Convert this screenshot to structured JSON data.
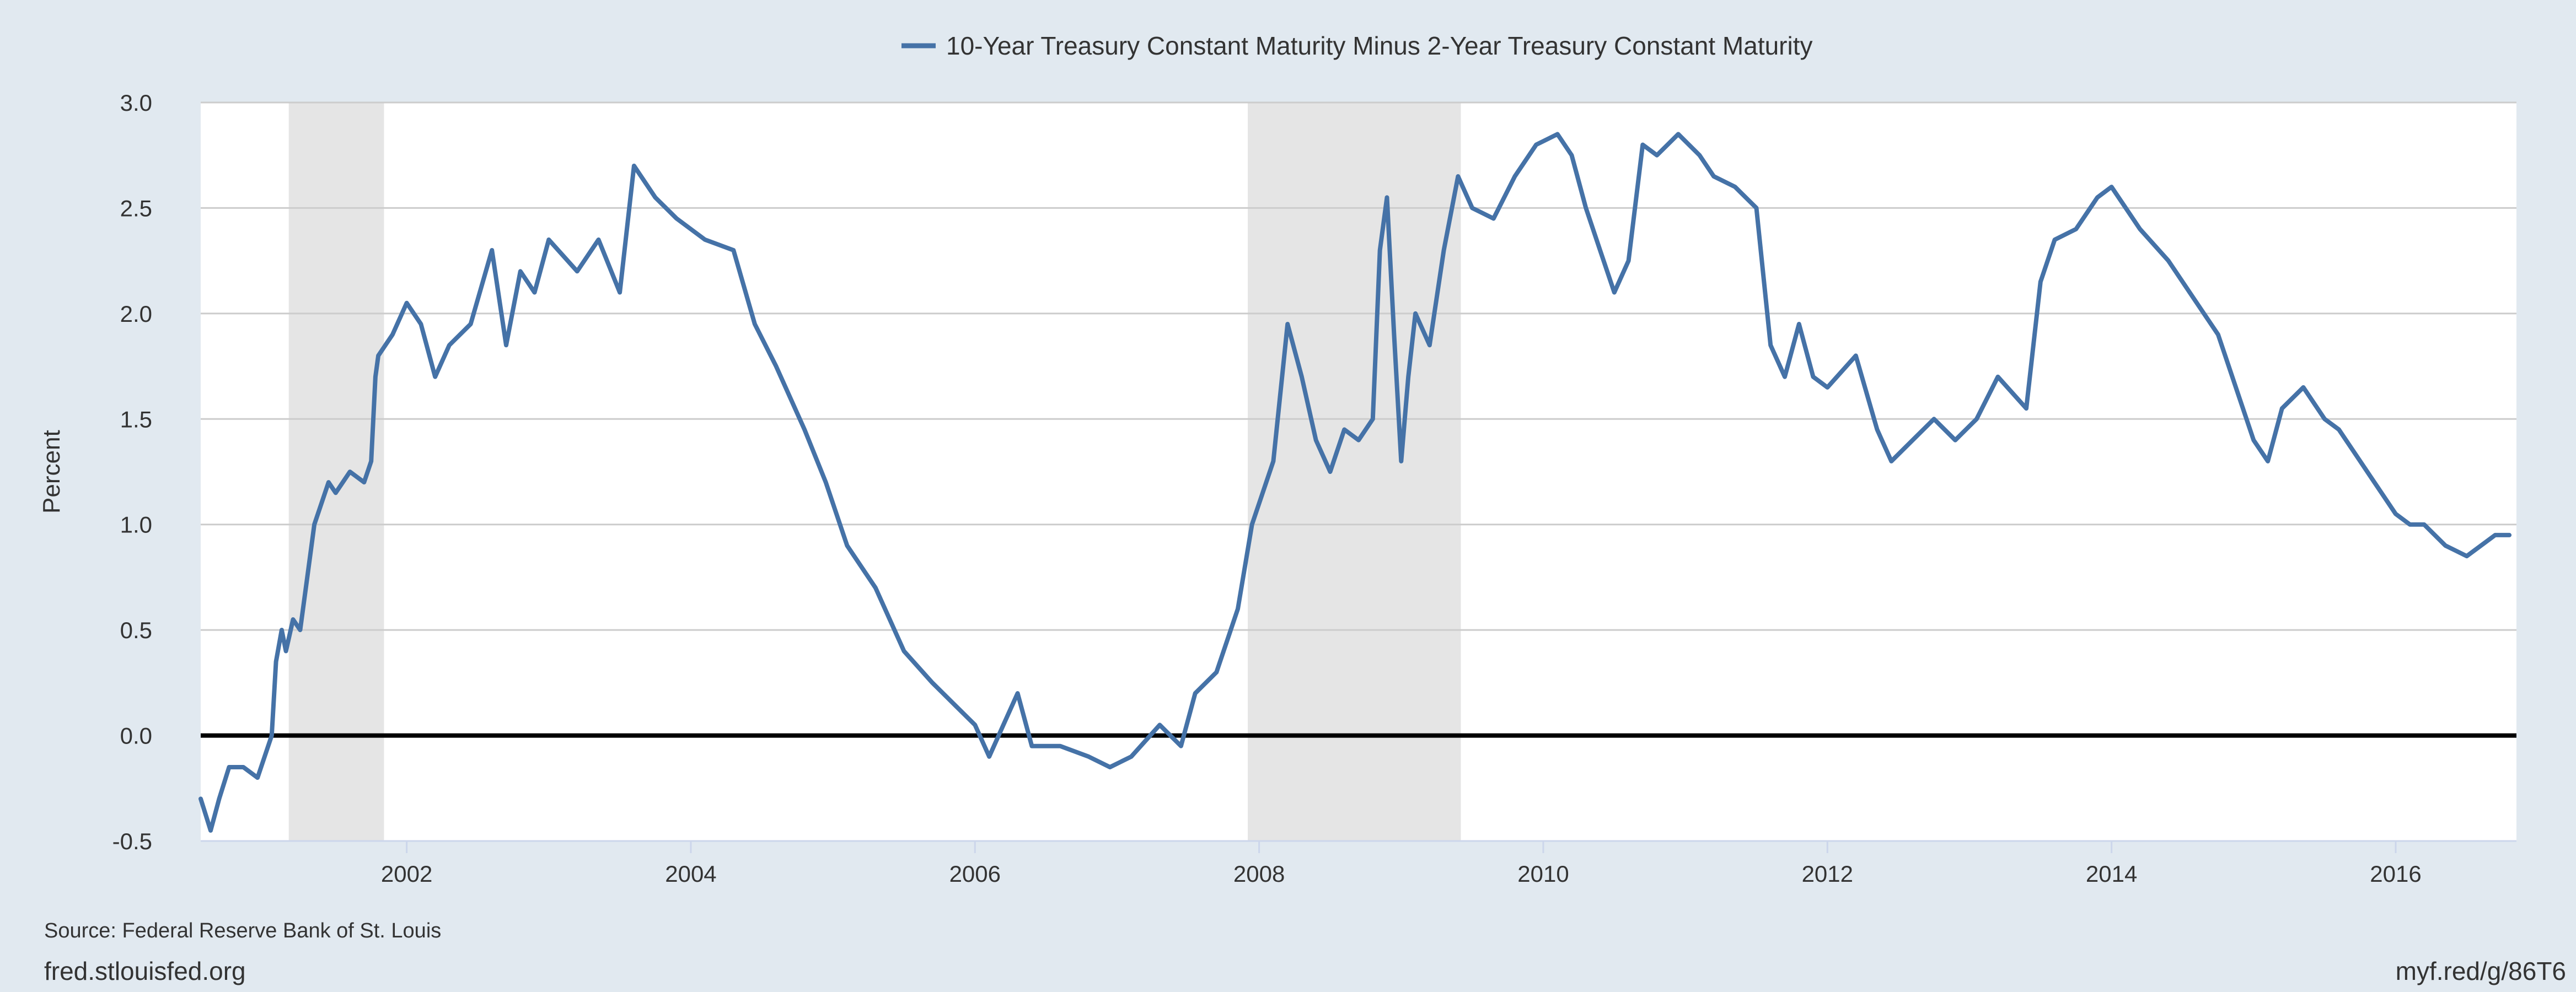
{
  "source_note": "Source: Federal Reserve Bank of St. Louis",
  "site": "fred.stlouisfed.org",
  "short_link": "myf.red/g/86T6",
  "colors": {
    "page_bg": "#e1e9f0",
    "plot_bg": "#ffffff",
    "line": "#4572a7",
    "recession": "#e5e5e5",
    "grid": "#cccccc",
    "zero_line": "#000000"
  },
  "chart_data": {
    "type": "line",
    "ylabel": "Percent",
    "xlim": [
      2000.55,
      2016.85
    ],
    "ylim": [
      -0.5,
      3.0
    ],
    "x_ticks": [
      2002,
      2004,
      2006,
      2008,
      2010,
      2012,
      2014,
      2016
    ],
    "x_tick_labels": [
      "2002",
      "2004",
      "2006",
      "2008",
      "2010",
      "2012",
      "2014",
      "2016"
    ],
    "y_ticks": [
      -0.5,
      0.0,
      0.5,
      1.0,
      1.5,
      2.0,
      2.5,
      3.0
    ],
    "y_tick_labels": [
      "-0.5",
      "0.0",
      "0.5",
      "1.0",
      "1.5",
      "2.0",
      "2.5",
      "3.0"
    ],
    "grid": true,
    "legend_position": "top-center",
    "recessions": [
      {
        "start": 2001.17,
        "end": 2001.84
      },
      {
        "start": 2007.92,
        "end": 2009.42
      }
    ],
    "series": [
      {
        "name": "10-Year Treasury Constant Maturity Minus 2-Year Treasury Constant Maturity",
        "x": [
          2000.55,
          2000.62,
          2000.68,
          2000.75,
          2000.85,
          2000.95,
          2001.05,
          2001.08,
          2001.12,
          2001.15,
          2001.2,
          2001.25,
          2001.3,
          2001.35,
          2001.4,
          2001.45,
          2001.5,
          2001.6,
          2001.7,
          2001.75,
          2001.78,
          2001.8,
          2001.9,
          2002.0,
          2002.1,
          2002.2,
          2002.3,
          2002.45,
          2002.6,
          2002.7,
          2002.8,
          2002.9,
          2003.0,
          2003.2,
          2003.35,
          2003.5,
          2003.6,
          2003.75,
          2003.9,
          2004.1,
          2004.3,
          2004.45,
          2004.6,
          2004.8,
          2004.95,
          2005.1,
          2005.3,
          2005.5,
          2005.7,
          2005.85,
          2006.0,
          2006.1,
          2006.2,
          2006.3,
          2006.4,
          2006.6,
          2006.8,
          2006.95,
          2007.1,
          2007.3,
          2007.45,
          2007.55,
          2007.7,
          2007.85,
          2007.95,
          2008.1,
          2008.2,
          2008.3,
          2008.4,
          2008.5,
          2008.6,
          2008.7,
          2008.8,
          2008.85,
          2008.9,
          2008.95,
          2009.0,
          2009.05,
          2009.1,
          2009.2,
          2009.3,
          2009.4,
          2009.5,
          2009.65,
          2009.8,
          2009.95,
          2010.1,
          2010.2,
          2010.3,
          2010.4,
          2010.5,
          2010.6,
          2010.7,
          2010.8,
          2010.95,
          2011.1,
          2011.2,
          2011.35,
          2011.5,
          2011.6,
          2011.7,
          2011.8,
          2011.9,
          2012.0,
          2012.2,
          2012.35,
          2012.45,
          2012.6,
          2012.75,
          2012.9,
          2013.05,
          2013.2,
          2013.4,
          2013.5,
          2013.6,
          2013.75,
          2013.9,
          2014.0,
          2014.2,
          2014.4,
          2014.6,
          2014.75,
          2014.9,
          2015.0,
          2015.1,
          2015.2,
          2015.35,
          2015.5,
          2015.6,
          2015.7,
          2015.85,
          2016.0,
          2016.1,
          2016.2,
          2016.35,
          2016.5,
          2016.6,
          2016.7,
          2016.8
        ],
        "y": [
          -0.3,
          -0.45,
          -0.3,
          -0.15,
          -0.15,
          -0.2,
          0.0,
          0.35,
          0.5,
          0.4,
          0.55,
          0.5,
          0.75,
          1.0,
          1.1,
          1.2,
          1.15,
          1.25,
          1.2,
          1.3,
          1.7,
          1.8,
          1.9,
          2.05,
          1.95,
          1.7,
          1.85,
          1.95,
          2.3,
          1.85,
          2.2,
          2.1,
          2.35,
          2.2,
          2.35,
          2.1,
          2.7,
          2.55,
          2.45,
          2.35,
          2.3,
          1.95,
          1.75,
          1.45,
          1.2,
          0.9,
          0.7,
          0.4,
          0.25,
          0.15,
          0.05,
          -0.1,
          0.05,
          0.2,
          -0.05,
          -0.05,
          -0.1,
          -0.15,
          -0.1,
          0.05,
          -0.05,
          0.2,
          0.3,
          0.6,
          1.0,
          1.3,
          1.95,
          1.7,
          1.4,
          1.25,
          1.45,
          1.4,
          1.5,
          2.3,
          2.55,
          1.9,
          1.3,
          1.7,
          2.0,
          1.85,
          2.3,
          2.65,
          2.5,
          2.45,
          2.65,
          2.8,
          2.85,
          2.75,
          2.5,
          2.3,
          2.1,
          2.25,
          2.8,
          2.75,
          2.85,
          2.75,
          2.65,
          2.6,
          2.5,
          1.85,
          1.7,
          1.95,
          1.7,
          1.65,
          1.8,
          1.45,
          1.3,
          1.4,
          1.5,
          1.4,
          1.5,
          1.7,
          1.55,
          2.15,
          2.35,
          2.4,
          2.55,
          2.6,
          2.4,
          2.25,
          2.05,
          1.9,
          1.6,
          1.4,
          1.3,
          1.55,
          1.65,
          1.5,
          1.45,
          1.35,
          1.2,
          1.05,
          1.0,
          1.0,
          0.9,
          0.85,
          0.9,
          0.95,
          0.95
        ]
      }
    ]
  }
}
